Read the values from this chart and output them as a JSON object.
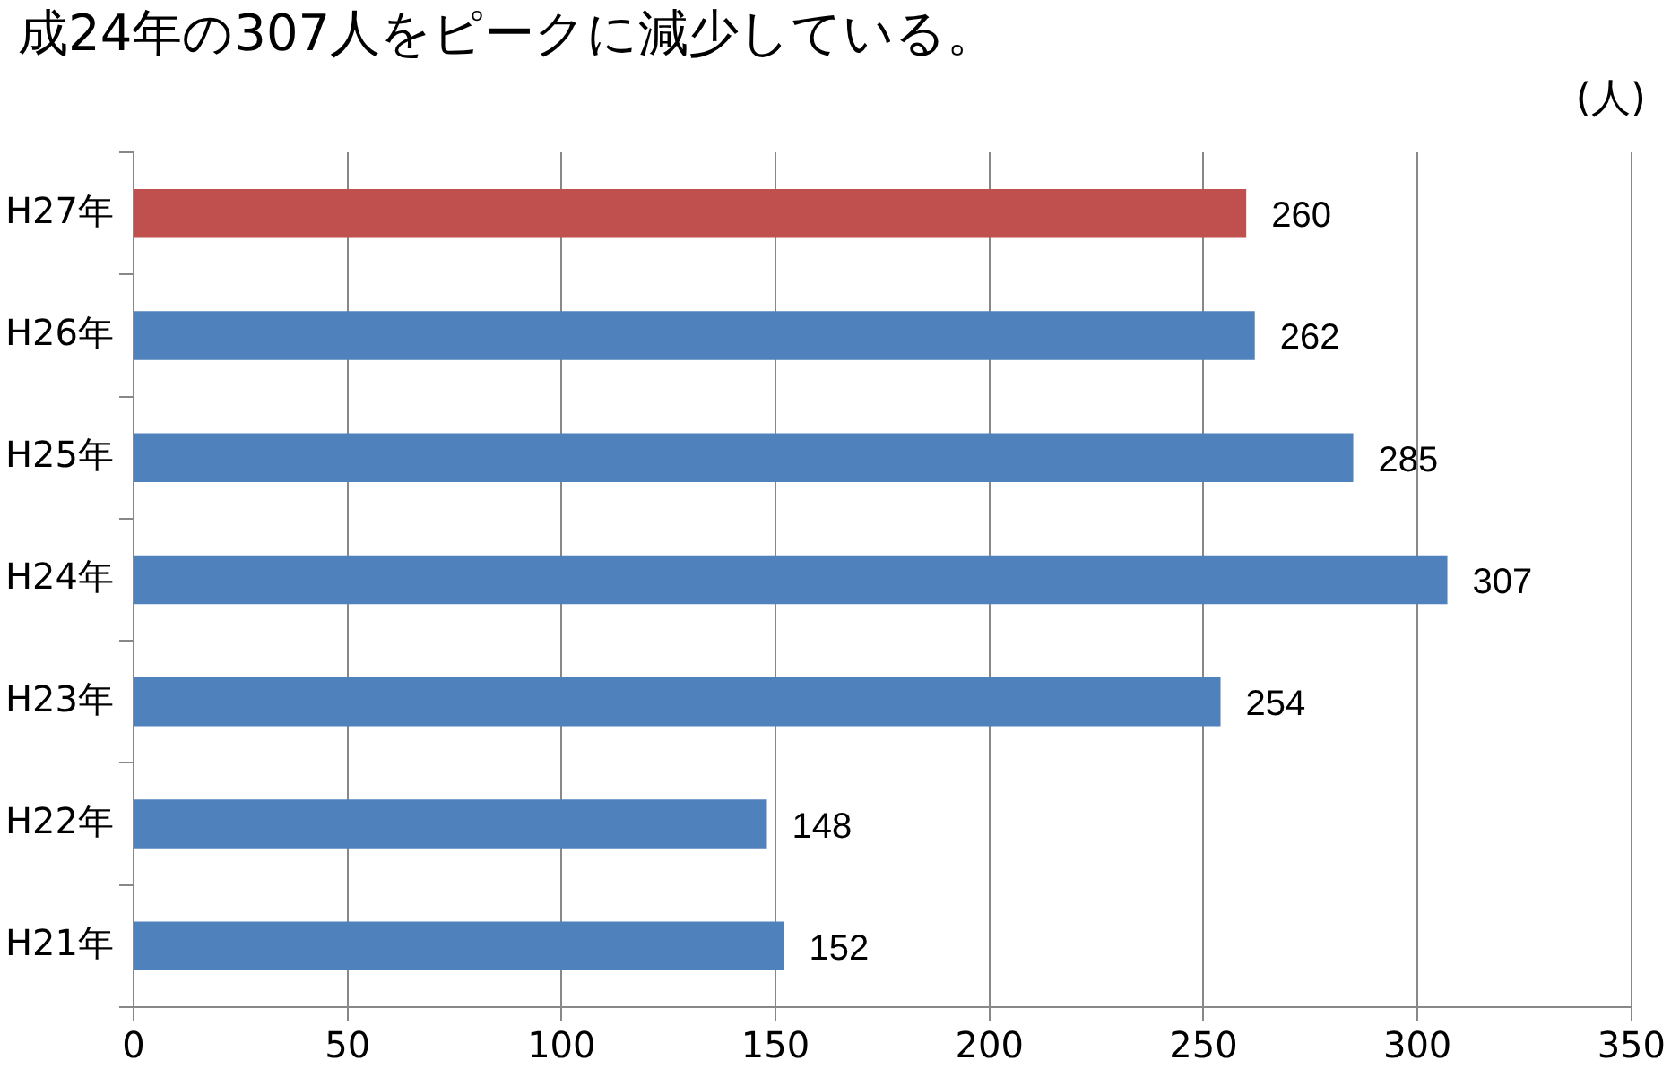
{
  "chart_data": {
    "type": "bar",
    "orientation": "horizontal",
    "subtitle": "成24年の307人をピークに減少している。",
    "xlabel": "(人)",
    "categories": [
      "H27年",
      "H26年",
      "H25年",
      "H24年",
      "H23年",
      "H22年",
      "H21年"
    ],
    "values": [
      260,
      262,
      285,
      307,
      254,
      148,
      152
    ],
    "colors": [
      "#c0504d",
      "#4f81bd",
      "#4f81bd",
      "#4f81bd",
      "#4f81bd",
      "#4f81bd",
      "#4f81bd"
    ],
    "xlim": [
      0,
      350
    ],
    "xticks": [
      0,
      50,
      100,
      150,
      200,
      250,
      300,
      350
    ],
    "grid": "x",
    "data_labels": true,
    "legend": false
  }
}
